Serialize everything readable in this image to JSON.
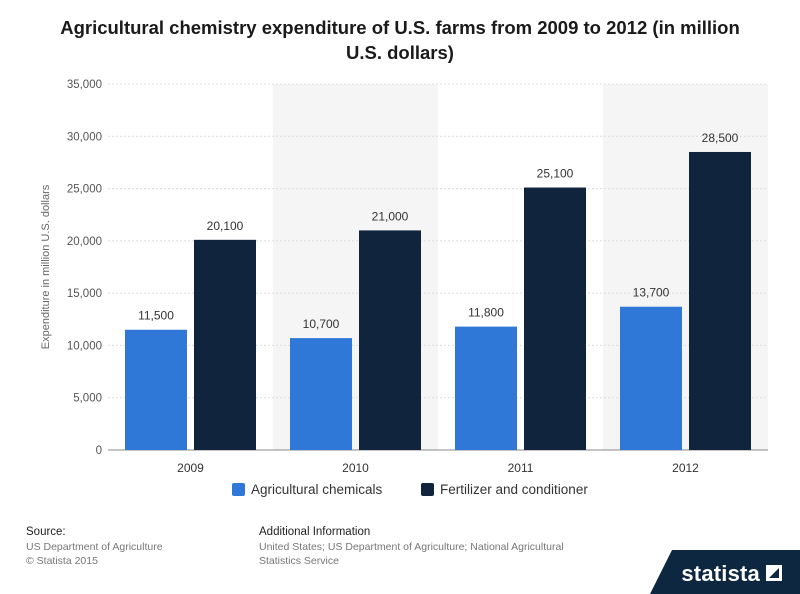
{
  "chart_data": {
    "type": "bar",
    "title": "Agricultural chemistry expenditure of U.S. farms from 2009 to 2012 (in million U.S. dollars)",
    "title_lines": [
      "Agricultural chemistry expenditure of U.S. farms from 2009 to 2012 (in million",
      "U.S. dollars)"
    ],
    "categories": [
      "2009",
      "2010",
      "2011",
      "2012"
    ],
    "series": [
      {
        "name": "Agricultural chemicals",
        "values": [
          11500,
          10700,
          11800,
          13700
        ],
        "labels": [
          "11,500",
          "10,700",
          "11,800",
          "13,700"
        ],
        "color": "#2f78d8"
      },
      {
        "name": "Fertilizer and conditioner",
        "values": [
          20100,
          21000,
          25100,
          28500
        ],
        "labels": [
          "20,100",
          "21,000",
          "25,100",
          "28,500"
        ],
        "color": "#10253d"
      }
    ],
    "ylabel": "Expenditure in million U.S. dollars",
    "xlabel": "",
    "ylim": [
      0,
      35000
    ],
    "yticks": [
      0,
      5000,
      10000,
      15000,
      20000,
      25000,
      30000,
      35000
    ],
    "ytick_labels": [
      "0",
      "5,000",
      "10,000",
      "15,000",
      "20,000",
      "25,000",
      "30,000",
      "35,000"
    ],
    "grid": true,
    "legend_position": "bottom-center"
  },
  "footer": {
    "source_title": "Source:",
    "source_line1": "US Department of Agriculture",
    "source_line2": "© Statista 2015",
    "info_title": "Additional Information",
    "info_text": "United States; US Department of Agriculture; National Agricultural Statistics Service",
    "brand": "statista"
  }
}
